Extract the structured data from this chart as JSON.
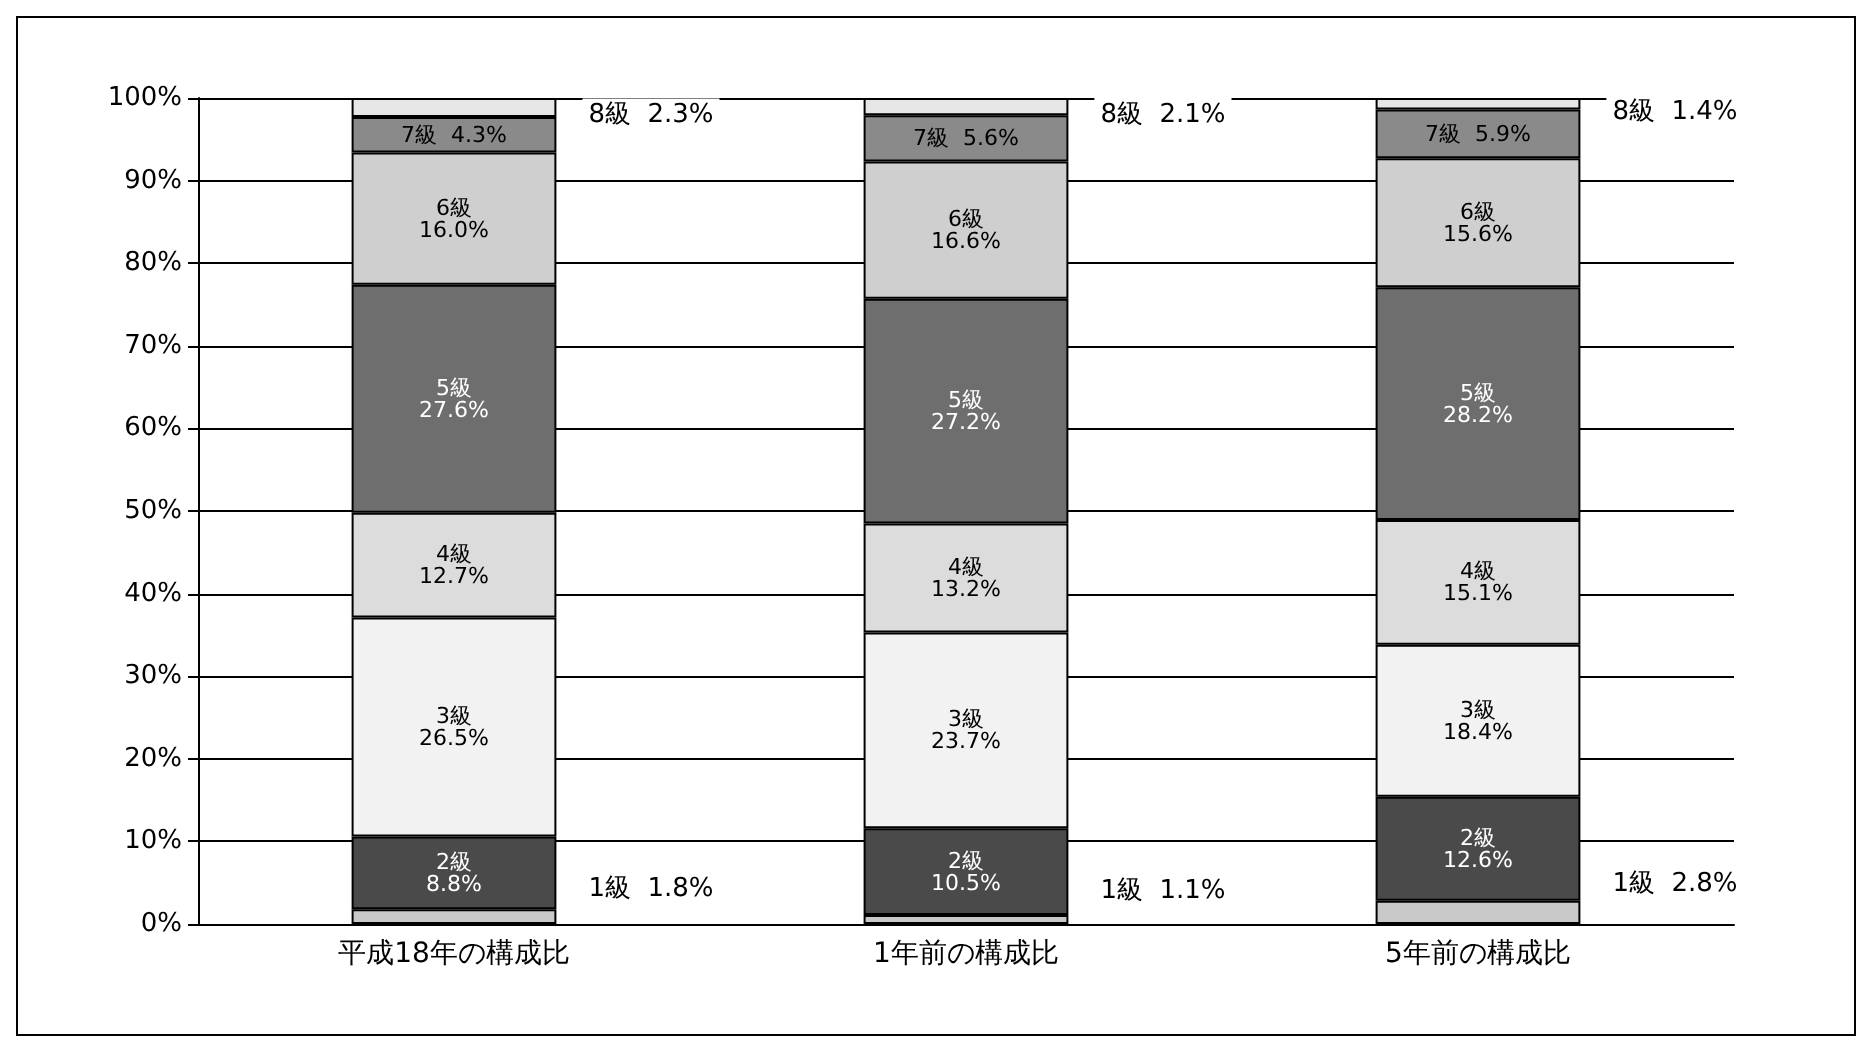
{
  "chart_data": {
    "type": "bar",
    "stacked": true,
    "categories": [
      "平成18年の構成比",
      "1年前の構成比",
      "5年前の構成比"
    ],
    "series": [
      {
        "name": "1級",
        "color": "#c8c8c8",
        "values": [
          1.8,
          1.1,
          2.8
        ],
        "value_labels": [
          "1.8%",
          "1.1%",
          "2.8%"
        ]
      },
      {
        "name": "2級",
        "color": "#4a4a4a",
        "values": [
          8.8,
          10.5,
          12.6
        ],
        "value_labels": [
          "8.8%",
          "10.5%",
          "12.6%"
        ]
      },
      {
        "name": "3級",
        "color": "#f2f2f2",
        "values": [
          26.5,
          23.7,
          18.4
        ],
        "value_labels": [
          "26.5%",
          "23.7%",
          "18.4%"
        ]
      },
      {
        "name": "4級",
        "color": "#dcdcdc",
        "values": [
          12.7,
          13.2,
          15.1
        ],
        "value_labels": [
          "12.7%",
          "13.2%",
          "15.1%"
        ]
      },
      {
        "name": "5級",
        "color": "#6e6e6e",
        "values": [
          27.6,
          27.2,
          28.2
        ],
        "value_labels": [
          "27.6%",
          "27.2%",
          "28.2%"
        ]
      },
      {
        "name": "6級",
        "color": "#cfcfcf",
        "values": [
          16.0,
          16.6,
          15.6
        ],
        "value_labels": [
          "16.0%",
          "16.6%",
          "15.6%"
        ]
      },
      {
        "name": "7級",
        "color": "#8a8a8a",
        "values": [
          4.3,
          5.6,
          5.9
        ],
        "value_labels": [
          "4.3%",
          "5.6%",
          "5.9%"
        ]
      },
      {
        "name": "8級",
        "color": "#e6e6e6",
        "values": [
          2.3,
          2.1,
          1.4
        ],
        "value_labels": [
          "2.3%",
          "2.1%",
          "1.4%"
        ]
      }
    ],
    "ylim": [
      0,
      100
    ],
    "yticks": [
      {
        "value": 0,
        "label": "0%"
      },
      {
        "value": 10,
        "label": "10%"
      },
      {
        "value": 20,
        "label": "20%"
      },
      {
        "value": 30,
        "label": "30%"
      },
      {
        "value": 40,
        "label": "40%"
      },
      {
        "value": 50,
        "label": "50%"
      },
      {
        "value": 60,
        "label": "60%"
      },
      {
        "value": 70,
        "label": "70%"
      },
      {
        "value": 80,
        "label": "80%"
      },
      {
        "value": 90,
        "label": "90%"
      },
      {
        "value": 100,
        "label": "100%"
      }
    ],
    "grid": "y",
    "legend": false
  }
}
